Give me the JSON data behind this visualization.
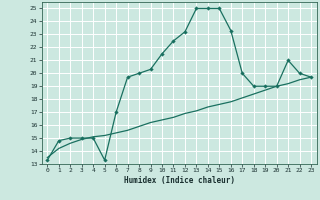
{
  "title": "",
  "xlabel": "Humidex (Indice chaleur)",
  "ylabel": "",
  "bg_color": "#cce8e0",
  "grid_color": "#ffffff",
  "line_color": "#1a7060",
  "xlim": [
    -0.5,
    23.5
  ],
  "ylim": [
    13,
    25.5
  ],
  "xticks": [
    0,
    1,
    2,
    3,
    4,
    5,
    6,
    7,
    8,
    9,
    10,
    11,
    12,
    13,
    14,
    15,
    16,
    17,
    18,
    19,
    20,
    21,
    22,
    23
  ],
  "yticks": [
    13,
    14,
    15,
    16,
    17,
    18,
    19,
    20,
    21,
    22,
    23,
    24,
    25
  ],
  "series1_x": [
    0,
    1,
    2,
    3,
    4,
    5,
    6,
    7,
    8,
    9,
    10,
    11,
    12,
    13,
    14,
    15,
    16,
    17,
    18,
    19,
    20,
    21,
    22,
    23
  ],
  "series1_y": [
    13.3,
    14.8,
    15.0,
    15.0,
    15.0,
    13.3,
    17.0,
    19.7,
    20.0,
    20.3,
    21.5,
    22.5,
    23.2,
    25.0,
    25.0,
    25.0,
    23.3,
    20.0,
    19.0,
    19.0,
    19.0,
    21.0,
    20.0,
    19.7
  ],
  "series2_x": [
    0,
    1,
    2,
    3,
    4,
    5,
    6,
    7,
    8,
    9,
    10,
    11,
    12,
    13,
    14,
    15,
    16,
    17,
    18,
    19,
    20,
    21,
    22,
    23
  ],
  "series2_y": [
    13.5,
    14.2,
    14.6,
    14.9,
    15.1,
    15.2,
    15.4,
    15.6,
    15.9,
    16.2,
    16.4,
    16.6,
    16.9,
    17.1,
    17.4,
    17.6,
    17.8,
    18.1,
    18.4,
    18.7,
    19.0,
    19.2,
    19.5,
    19.7
  ]
}
